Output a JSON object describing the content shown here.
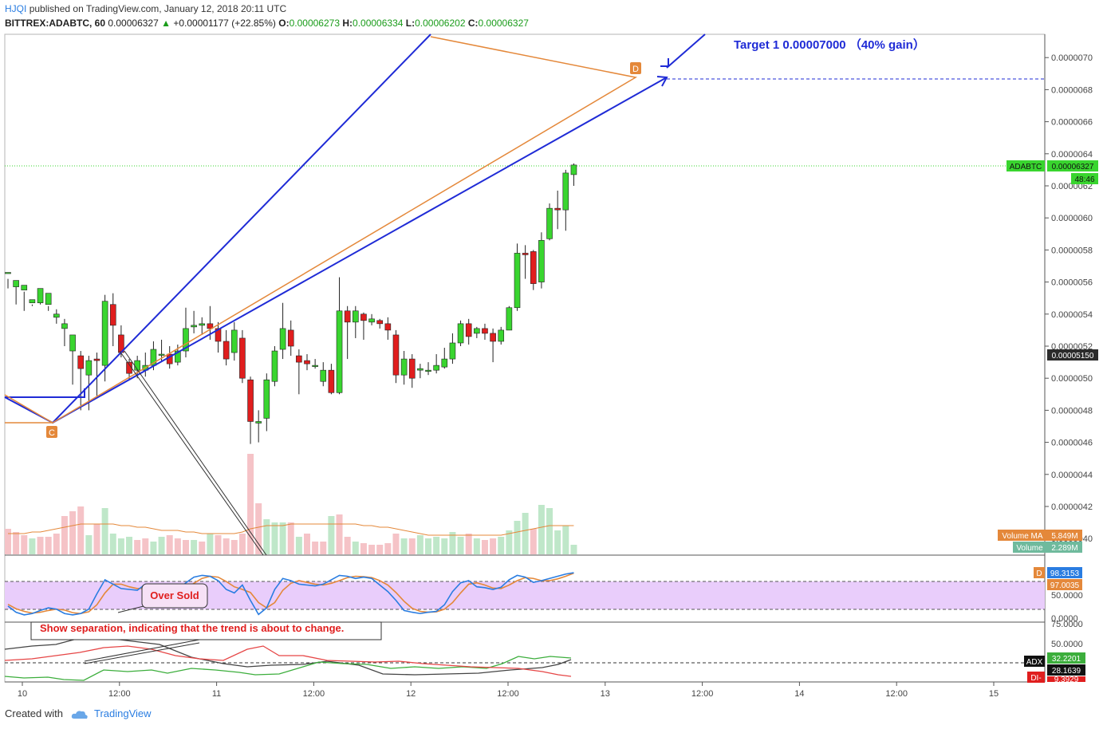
{
  "header": {
    "user": "HJQI",
    "published": "published on TradingView.com, January 12, 2018 20:11 UTC",
    "symbol": "BITTREX:ADABTC, 60",
    "last": "0.00006327",
    "change": "+0.00001177 (+22.85%)",
    "o_label": "O:",
    "o": "0.00006273",
    "h_label": "H:",
    "h": "0.00006334",
    "l_label": "L:",
    "l": "0.00006202",
    "c_label": "C:",
    "c": "0.00006327"
  },
  "footer": {
    "created_with": "Created with",
    "brand": "TradingView"
  },
  "colors": {
    "up": "#39d52f",
    "down": "#e01e1e",
    "blue_line": "#1f2bd6",
    "orange_line": "#e4883a",
    "stoch_band": "#e9cdfb",
    "di_plus": "#3cae3c",
    "di_minus": "#e64646",
    "adx": "#444444"
  },
  "chart_data": {
    "type": "candlestick",
    "price_axis": {
      "ticks": [
        "0.0000070",
        "0.0000068",
        "0.0000066",
        "0.0000064",
        "0.0000062",
        "0.0000060",
        "0.0000058",
        "0.0000056",
        "0.0000054",
        "0.0000052",
        "0.0000050",
        "0.0000048",
        "0.0000046",
        "0.0000044",
        "0.0000042",
        "0.0000040"
      ]
    },
    "time_axis": [
      "10",
      "12:00",
      "11",
      "12:00",
      "12",
      "12:00",
      "13",
      "12:00",
      "14",
      "12:00",
      "15"
    ],
    "annotations": {
      "target": "Target 1 0.00007000 （40% gain）",
      "point_c": "C",
      "point_d": "D",
      "oversold": "Over Sold",
      "separation": "Show separation, indicating that the trend is about to change."
    },
    "labels": {
      "symbol_tag": "ADABTC",
      "symbol_value": "0.00006327",
      "countdown": "48:46",
      "level_tag": "0.00005150",
      "volume_ma_label": "Volume MA",
      "volume_ma_value": "5.849M",
      "volume_label": "Volume",
      "volume_value": "2.289M",
      "stoch_k_value": "98.3153",
      "stoch_d_value": "97.0035",
      "stoch_d_tag": "D",
      "stoch_ticks": [
        "50.0000",
        "0.0000"
      ],
      "adx_ticks": [
        "75.0000",
        "50.0000"
      ],
      "adx_label": "ADX",
      "adx_value": "32.2201",
      "di_plus_value": "28.1639",
      "di_minus_label": "DI-",
      "di_minus_value": "9.3929"
    },
    "candles": [
      [
        5.66,
        5.66,
        5.62,
        5.56
      ],
      [
        5.57,
        5.61,
        5.57,
        5.46
      ],
      [
        5.55,
        5.58,
        5.54,
        5.42
      ],
      [
        5.47,
        5.49,
        5.46,
        5.45
      ],
      [
        5.47,
        5.56,
        5.46,
        5.56
      ],
      [
        5.46,
        5.53,
        5.45,
        5.42
      ],
      [
        5.38,
        5.4,
        5.43,
        5.34
      ],
      [
        5.31,
        5.34,
        5.37,
        5.2
      ],
      [
        5.17,
        5.27,
        5.23,
        4.96
      ],
      [
        5.14,
        5.06,
        5.17,
        4.8
      ],
      [
        5.02,
        5.11,
        5.14,
        4.8
      ],
      [
        5.12,
        5.11,
        5.16,
        4.89
      ],
      [
        5.08,
        5.48,
        5.52,
        4.98
      ],
      [
        5.46,
        5.33,
        5.53,
        5.2
      ],
      [
        5.27,
        5.16,
        5.33,
        5.13
      ],
      [
        5.1,
        5.03,
        5.12,
        4.99
      ],
      [
        5.05,
        5.11,
        5.14,
        5.0
      ],
      [
        5.05,
        5.08,
        5.16,
        5.01
      ],
      [
        5.08,
        5.18,
        5.23,
        5.05
      ],
      [
        5.15,
        5.15,
        5.24,
        5.1
      ],
      [
        5.15,
        5.09,
        5.2,
        5.06
      ],
      [
        5.1,
        5.17,
        5.21,
        5.08
      ],
      [
        5.17,
        5.31,
        5.44,
        5.13
      ],
      [
        5.32,
        5.33,
        5.42,
        5.28
      ],
      [
        5.33,
        5.34,
        5.38,
        5.27
      ],
      [
        5.34,
        5.31,
        5.45,
        5.24
      ],
      [
        5.31,
        5.23,
        5.35,
        5.16
      ],
      [
        5.23,
        5.12,
        5.3,
        5.08
      ],
      [
        5.16,
        5.3,
        5.35,
        5.11
      ],
      [
        5.25,
        5.0,
        5.3,
        4.97
      ],
      [
        4.99,
        4.73,
        5.01,
        4.59
      ],
      [
        4.72,
        4.73,
        4.8,
        4.6
      ],
      [
        4.75,
        4.99,
        5.03,
        4.67
      ],
      [
        4.98,
        5.17,
        5.2,
        4.95
      ],
      [
        5.18,
        5.31,
        5.47,
        5.12
      ],
      [
        5.3,
        5.2,
        5.36,
        5.14
      ],
      [
        5.14,
        5.1,
        5.18,
        4.9
      ],
      [
        5.11,
        5.09,
        5.15,
        5.05
      ],
      [
        5.08,
        5.08,
        5.12,
        5.06
      ],
      [
        4.98,
        5.05,
        5.1,
        4.95
      ],
      [
        5.05,
        4.91,
        5.09,
        4.9
      ],
      [
        4.91,
        5.42,
        5.63,
        4.9
      ],
      [
        5.42,
        5.35,
        5.45,
        5.12
      ],
      [
        5.35,
        5.42,
        5.45,
        5.25
      ],
      [
        5.4,
        5.36,
        5.41,
        5.24
      ],
      [
        5.35,
        5.37,
        5.4,
        5.33
      ],
      [
        5.36,
        5.34,
        5.37,
        5.31
      ],
      [
        5.34,
        5.3,
        5.38,
        5.24
      ],
      [
        5.27,
        5.02,
        5.3,
        4.97
      ],
      [
        5.02,
        5.12,
        5.17,
        4.96
      ],
      [
        5.12,
        5.0,
        5.15,
        4.94
      ],
      [
        5.05,
        5.06,
        5.09,
        5.0
      ],
      [
        5.05,
        5.05,
        5.1,
        5.02
      ],
      [
        5.05,
        5.08,
        5.15,
        5.03
      ],
      [
        5.07,
        5.12,
        5.19,
        5.06
      ],
      [
        5.12,
        5.22,
        5.28,
        5.09
      ],
      [
        5.22,
        5.34,
        5.36,
        5.2
      ],
      [
        5.34,
        5.26,
        5.37,
        5.21
      ],
      [
        5.28,
        5.31,
        5.32,
        5.25
      ],
      [
        5.31,
        5.28,
        5.34,
        5.24
      ],
      [
        5.28,
        5.23,
        5.31,
        5.1
      ],
      [
        5.23,
        5.3,
        5.32,
        5.21
      ],
      [
        5.3,
        5.44,
        5.45,
        5.3
      ],
      [
        5.44,
        5.78,
        5.84,
        5.42
      ],
      [
        5.78,
        5.77,
        5.83,
        5.62
      ],
      [
        5.79,
        5.59,
        5.8,
        5.55
      ],
      [
        5.6,
        5.86,
        5.91,
        5.56
      ],
      [
        5.87,
        6.06,
        6.09,
        5.86
      ],
      [
        6.06,
        6.05,
        6.17,
        5.93
      ],
      [
        6.05,
        6.28,
        6.3,
        5.92
      ],
      [
        6.27,
        6.33,
        6.34,
        6.2
      ]
    ],
    "volume": [
      [
        1.6,
        0
      ],
      [
        1.4,
        0
      ],
      [
        1.2,
        0
      ],
      [
        1.0,
        1
      ],
      [
        1.1,
        0
      ],
      [
        1.1,
        0
      ],
      [
        1.3,
        0
      ],
      [
        2.4,
        0
      ],
      [
        2.7,
        0
      ],
      [
        3.0,
        0
      ],
      [
        1.2,
        1
      ],
      [
        1.9,
        0
      ],
      [
        2.9,
        1
      ],
      [
        1.3,
        1
      ],
      [
        1.0,
        1
      ],
      [
        1.1,
        1
      ],
      [
        0.9,
        0
      ],
      [
        1.0,
        0
      ],
      [
        0.8,
        1
      ],
      [
        1.1,
        1
      ],
      [
        1.2,
        0
      ],
      [
        1.0,
        0
      ],
      [
        0.9,
        0
      ],
      [
        0.9,
        1
      ],
      [
        0.8,
        0
      ],
      [
        1.3,
        1
      ],
      [
        1.2,
        0
      ],
      [
        1.0,
        0
      ],
      [
        0.9,
        0
      ],
      [
        1.3,
        0
      ],
      [
        6.3,
        0
      ],
      [
        3.2,
        0
      ],
      [
        2.2,
        1
      ],
      [
        2.0,
        1
      ],
      [
        2.0,
        1
      ],
      [
        2.0,
        0
      ],
      [
        1.1,
        1
      ],
      [
        1.3,
        0
      ],
      [
        0.8,
        0
      ],
      [
        0.8,
        0
      ],
      [
        2.4,
        1
      ],
      [
        2.5,
        0
      ],
      [
        1.1,
        0
      ],
      [
        0.8,
        1
      ],
      [
        0.7,
        0
      ],
      [
        0.6,
        0
      ],
      [
        0.6,
        0
      ],
      [
        0.7,
        0
      ],
      [
        1.3,
        0
      ],
      [
        1.0,
        1
      ],
      [
        1.0,
        0
      ],
      [
        1.2,
        1
      ],
      [
        1.0,
        1
      ],
      [
        1.1,
        1
      ],
      [
        1.0,
        1
      ],
      [
        1.4,
        1
      ],
      [
        1.1,
        1
      ],
      [
        1.3,
        0
      ],
      [
        1.0,
        1
      ],
      [
        0.9,
        0
      ],
      [
        1.0,
        0
      ],
      [
        1.1,
        1
      ],
      [
        1.5,
        1
      ],
      [
        2.1,
        1
      ],
      [
        2.6,
        1
      ],
      [
        1.6,
        0
      ],
      [
        3.1,
        1
      ],
      [
        2.9,
        1
      ],
      [
        1.5,
        1
      ],
      [
        1.8,
        1
      ],
      [
        0.6,
        1
      ]
    ],
    "volume_ma": [
      1.3,
      1.3,
      1.3,
      1.4,
      1.4,
      1.5,
      1.6,
      1.7,
      1.8,
      1.9,
      1.9,
      1.9,
      1.9,
      1.9,
      1.8,
      1.8,
      1.7,
      1.7,
      1.6,
      1.5,
      1.5,
      1.5,
      1.4,
      1.4,
      1.3,
      1.3,
      1.3,
      1.3,
      1.3,
      1.4,
      1.6,
      1.7,
      1.8,
      1.8,
      1.8,
      1.9,
      1.9,
      1.9,
      1.9,
      1.9,
      1.9,
      1.9,
      1.9,
      1.9,
      1.8,
      1.8,
      1.7,
      1.7,
      1.6,
      1.5,
      1.4,
      1.3,
      1.2,
      1.2,
      1.2,
      1.2,
      1.2,
      1.2,
      1.2,
      1.2,
      1.2,
      1.2,
      1.3,
      1.4,
      1.5,
      1.6,
      1.7,
      1.8,
      1.8,
      1.8,
      1.8
    ],
    "stoch_k": [
      22,
      8,
      2,
      5,
      12,
      18,
      15,
      5,
      2,
      5,
      15,
      50,
      82,
      72,
      62,
      60,
      58,
      72,
      68,
      55,
      52,
      58,
      75,
      88,
      92,
      90,
      80,
      60,
      52,
      70,
      35,
      3,
      18,
      60,
      85,
      80,
      72,
      70,
      68,
      72,
      82,
      92,
      90,
      85,
      88,
      85,
      70,
      55,
      35,
      12,
      8,
      5,
      8,
      10,
      25,
      55,
      75,
      80,
      66,
      64,
      60,
      65,
      82,
      92,
      88,
      76,
      80,
      85,
      90,
      95,
      98
    ],
    "stoch_d": [
      26,
      16,
      10,
      6,
      8,
      12,
      15,
      13,
      7,
      5,
      9,
      25,
      52,
      72,
      72,
      66,
      62,
      63,
      65,
      62,
      56,
      56,
      62,
      74,
      85,
      90,
      88,
      78,
      66,
      60,
      53,
      30,
      18,
      30,
      58,
      74,
      80,
      76,
      72,
      70,
      74,
      80,
      87,
      90,
      89,
      87,
      80,
      70,
      53,
      33,
      17,
      10,
      8,
      9,
      15,
      30,
      52,
      72,
      75,
      70,
      63,
      62,
      70,
      80,
      87,
      85,
      80,
      80,
      84,
      90,
      97
    ]
  }
}
